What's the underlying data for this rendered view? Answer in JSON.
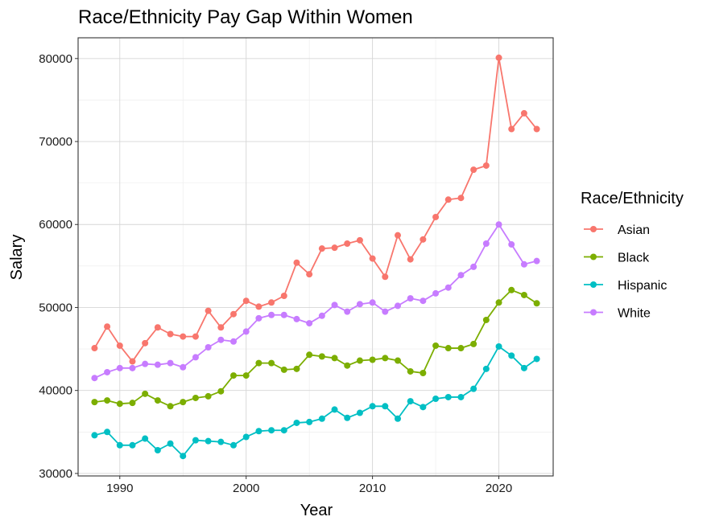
{
  "chart_data": {
    "type": "line",
    "title": "Race/Ethnicity Pay Gap Within Women",
    "xlabel": "Year",
    "ylabel": "Salary",
    "xlim": [
      1986.7,
      2024.3
    ],
    "ylim": [
      29700,
      82500
    ],
    "x_ticks": [
      1990,
      2000,
      2010,
      2020
    ],
    "x_tick_labels": [
      "1990",
      "2000",
      "2010",
      "2020"
    ],
    "y_ticks": [
      30000,
      40000,
      50000,
      60000,
      70000,
      80000
    ],
    "y_tick_labels": [
      "30000",
      "40000",
      "50000",
      "60000",
      "70000",
      "80000"
    ],
    "grid": true,
    "legend": {
      "title": "Race/Ethnicity",
      "position": "right"
    },
    "x": [
      1988,
      1989,
      1990,
      1991,
      1992,
      1993,
      1994,
      1995,
      1996,
      1997,
      1998,
      1999,
      2000,
      2001,
      2002,
      2003,
      2004,
      2005,
      2006,
      2007,
      2008,
      2009,
      2010,
      2011,
      2012,
      2013,
      2014,
      2015,
      2016,
      2017,
      2018,
      2019,
      2020,
      2021,
      2022,
      2023
    ],
    "series": [
      {
        "name": "Asian",
        "color": "#F8766D",
        "values": [
          45100,
          47700,
          45400,
          43500,
          45700,
          47600,
          46800,
          46500,
          46500,
          49600,
          47600,
          49200,
          50800,
          50100,
          50600,
          51400,
          55400,
          54000,
          57100,
          57200,
          57700,
          58100,
          55900,
          53700,
          58700,
          55800,
          58200,
          60900,
          63000,
          63200,
          66600,
          67100,
          80100,
          71500,
          73400,
          71500
        ]
      },
      {
        "name": "Black",
        "color": "#7CAE00",
        "values": [
          38600,
          38800,
          38400,
          38500,
          39600,
          38800,
          38100,
          38600,
          39100,
          39300,
          39900,
          41800,
          41800,
          43300,
          43300,
          42500,
          42600,
          44300,
          44100,
          43900,
          43000,
          43600,
          43700,
          43900,
          43600,
          42300,
          42100,
          45400,
          45100,
          45100,
          45600,
          48500,
          50600,
          52100,
          51500,
          50500
        ]
      },
      {
        "name": "Hispanic",
        "color": "#00BFC4",
        "values": [
          34600,
          35000,
          33400,
          33400,
          34200,
          32800,
          33600,
          32100,
          34000,
          33900,
          33800,
          33400,
          34400,
          35100,
          35200,
          35200,
          36100,
          36200,
          36600,
          37700,
          36700,
          37300,
          38100,
          38100,
          36600,
          38700,
          38000,
          39000,
          39200,
          39200,
          40200,
          42600,
          45300,
          44200,
          42700,
          43800
        ]
      },
      {
        "name": "White",
        "color": "#C77CFF",
        "values": [
          41500,
          42200,
          42700,
          42700,
          43200,
          43100,
          43300,
          42800,
          44000,
          45200,
          46100,
          45900,
          47100,
          48700,
          49100,
          49100,
          48600,
          48100,
          49000,
          50300,
          49500,
          50400,
          50600,
          49500,
          50200,
          51100,
          50800,
          51700,
          52400,
          53900,
          54900,
          57700,
          60000,
          57600,
          55200,
          55600
        ]
      }
    ]
  }
}
